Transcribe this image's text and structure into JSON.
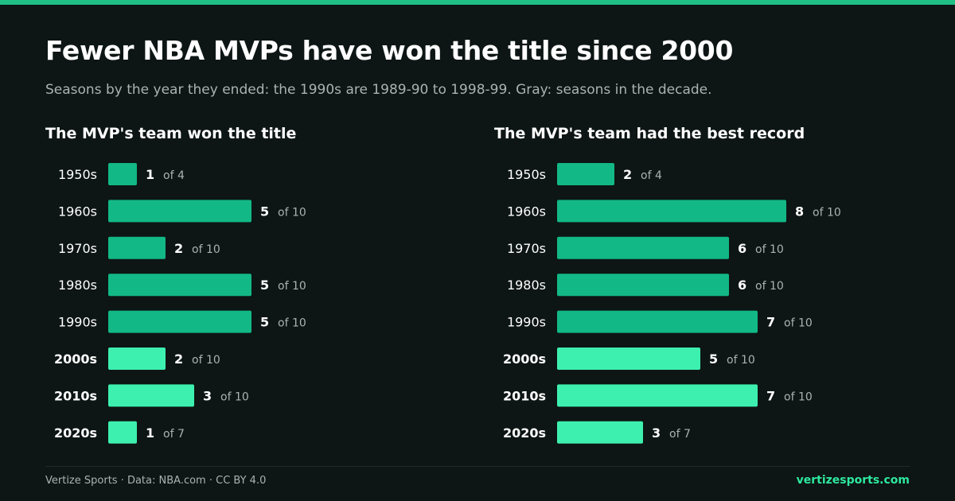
{
  "title": "Fewer NBA MVPs have won the title since 2000",
  "subtitle": "Seasons by the year they ended: the 1990s are 1989-90 to 1998-99. Gray: seasons in the decade.",
  "colors": {
    "background": "#0d1614",
    "accent": "#1fbf85",
    "bar_pre2000": "#12b886",
    "bar_post2000": "#3df0b0",
    "muted_text": "#a9b3b0",
    "brand": "#2ee8a0"
  },
  "chart_data": [
    {
      "type": "bar",
      "orientation": "horizontal",
      "title": "The MVP's team won the title",
      "categories": [
        "1950s",
        "1960s",
        "1970s",
        "1980s",
        "1990s",
        "2000s",
        "2010s",
        "2020s"
      ],
      "values": [
        1,
        5,
        2,
        5,
        5,
        2,
        3,
        1
      ],
      "totals": [
        "of 4",
        "of 10",
        "of 10",
        "of 10",
        "of 10",
        "of 10",
        "of 10",
        "of 7"
      ],
      "highlighted_categories": [
        "2000s",
        "2010s",
        "2020s"
      ]
    },
    {
      "type": "bar",
      "orientation": "horizontal",
      "title": "The MVP's team had the best record",
      "categories": [
        "1950s",
        "1960s",
        "1970s",
        "1980s",
        "1990s",
        "2000s",
        "2010s",
        "2020s"
      ],
      "values": [
        2,
        8,
        6,
        6,
        7,
        5,
        7,
        3
      ],
      "totals": [
        "of 4",
        "of 10",
        "of 10",
        "of 10",
        "of 10",
        "of 10",
        "of 10",
        "of 7"
      ],
      "highlighted_categories": [
        "2000s",
        "2010s",
        "2020s"
      ]
    }
  ],
  "footer": {
    "credit": "Vertize Sports · Data: NBA.com · CC BY 4.0",
    "site": "vertizesports.com"
  }
}
